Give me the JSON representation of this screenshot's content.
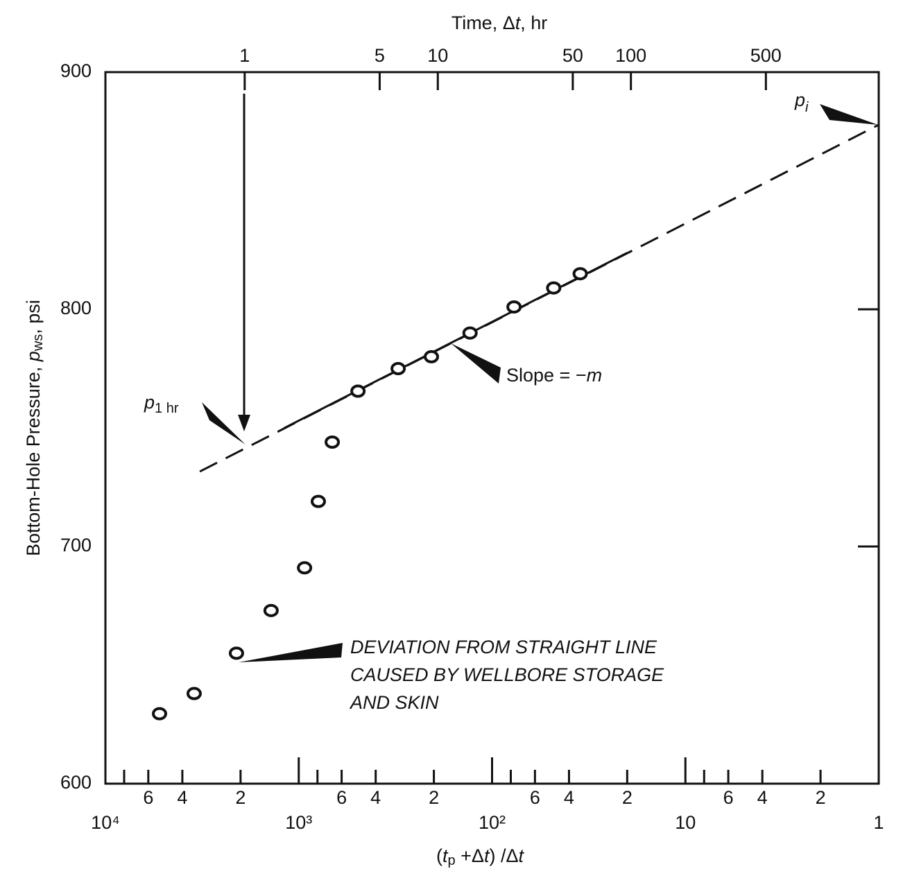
{
  "chart_data": {
    "type": "scatter",
    "x2label": [
      "Time, Δ",
      "t",
      ", hr"
    ],
    "ylabel": [
      "Bottom-Hole Pressure, ",
      "p",
      "ws",
      ", psi"
    ],
    "xlabel": [
      "(",
      "t",
      "p",
      " +Δ",
      "t",
      ") /Δ",
      "t"
    ],
    "log_x": true,
    "xlim": [
      10000,
      1
    ],
    "xticks": [
      {
        "value": 6000,
        "label": "6"
      },
      {
        "value": 4000,
        "label": "4"
      },
      {
        "value": 2000,
        "label": "2"
      },
      {
        "value": 600,
        "label": "6"
      },
      {
        "value": 400,
        "label": "4"
      },
      {
        "value": 200,
        "label": "2"
      },
      {
        "value": 60,
        "label": "6"
      },
      {
        "value": 40,
        "label": "4"
      },
      {
        "value": 20,
        "label": "2"
      },
      {
        "value": 6,
        "label": "6"
      },
      {
        "value": 4,
        "label": "4"
      },
      {
        "value": 2,
        "label": "2"
      }
    ],
    "xticks_major": [
      {
        "value": 10000,
        "label": "10⁴"
      },
      {
        "value": 1000,
        "label": "10³"
      },
      {
        "value": 100,
        "label": "10²"
      },
      10,
      1
    ],
    "xticks_unlabeled": [
      8000,
      800,
      80,
      8
    ],
    "x2lim": [
      0.19,
      1920
    ],
    "x2ticks": [
      1,
      5,
      10,
      50,
      100,
      500
    ],
    "ylim": [
      600,
      900
    ],
    "yticks": [
      600,
      700,
      800,
      900
    ],
    "y2ticks": [
      700,
      800
    ],
    "points": {
      "color": "#111",
      "x": [
        5250,
        3475,
        2100,
        1390,
        933,
        792,
        671,
        494,
        306,
        206,
        130,
        77,
        48,
        35
      ],
      "values": [
        629.5,
        638,
        655,
        673,
        691,
        719,
        744,
        765.5,
        775,
        780,
        790,
        801,
        809,
        815
      ]
    },
    "lines": [
      {
        "style": "dashed",
        "x": [
          3250,
          1
        ],
        "values": [
          731.6,
          877.8
        ]
      },
      {
        "style": "solid",
        "x": [
          1190,
          20
        ],
        "values": [
          749.9,
          823.8
        ]
      }
    ],
    "annotations": {
      "p1hr": [
        "p",
        "1 hr"
      ],
      "pi": [
        "p",
        "i"
      ],
      "slope": [
        "Slope = −",
        "m"
      ],
      "deviation": [
        "DEVIATION FROM STRAIGHT LINE",
        "CAUSED BY WELLBORE STORAGE",
        "AND SKIN"
      ]
    }
  }
}
